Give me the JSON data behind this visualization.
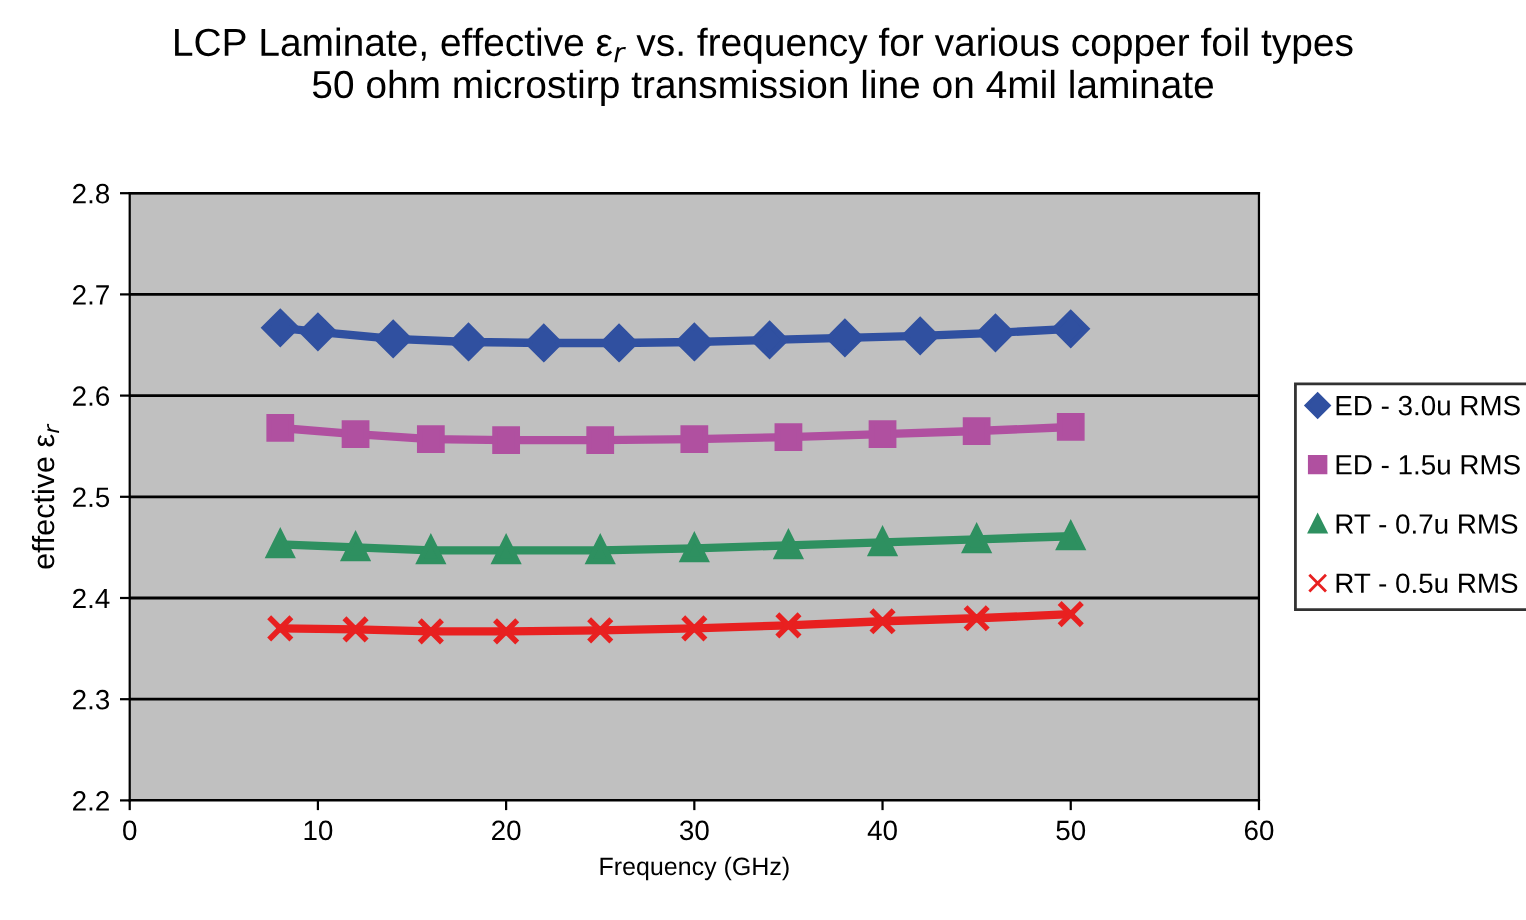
{
  "chart_data": {
    "type": "line",
    "title": "LCP Laminate, effective ε$_{r}$ vs. frequency for various copper foil types\n50 ohm microstirp transmission line on 4mil laminate",
    "xlabel": "Frequency (GHz)",
    "ylabel": "effective ε$_{r}$",
    "xlim": [
      0,
      60
    ],
    "xticks": [
      0,
      10,
      20,
      30,
      40,
      50,
      60
    ],
    "ylim": [
      2.2,
      2.8
    ],
    "yticks": [
      2.2,
      2.3,
      2.4,
      2.5,
      2.6,
      2.7,
      2.8
    ],
    "grid": "y",
    "legend": "right",
    "series": [
      {
        "name": "ED - 3.0u RMS",
        "color": "#3050a0",
        "marker": "diamond",
        "x": [
          8,
          10,
          14,
          18,
          22,
          26,
          30,
          34,
          38,
          42,
          46,
          50
        ],
        "values": [
          2.667,
          2.663,
          2.656,
          2.653,
          2.652,
          2.652,
          2.653,
          2.655,
          2.657,
          2.659,
          2.662,
          2.666
        ]
      },
      {
        "name": "ED - 1.5u RMS",
        "color": "#b050a0",
        "marker": "square",
        "x": [
          8,
          12,
          16,
          20,
          25,
          30,
          35,
          40,
          45,
          50
        ],
        "values": [
          2.568,
          2.562,
          2.557,
          2.556,
          2.556,
          2.557,
          2.559,
          2.562,
          2.565,
          2.569
        ]
      },
      {
        "name": "RT - 0.7u RMS",
        "color": "#2e9060",
        "marker": "triangle",
        "x": [
          8,
          12,
          16,
          20,
          25,
          30,
          35,
          40,
          45,
          50
        ],
        "values": [
          2.453,
          2.45,
          2.447,
          2.447,
          2.447,
          2.449,
          2.452,
          2.455,
          2.458,
          2.461
        ]
      },
      {
        "name": "RT - 0.5u RMS",
        "color": "#e82020",
        "marker": "cross",
        "x": [
          8,
          12,
          16,
          20,
          25,
          30,
          35,
          40,
          45,
          50
        ],
        "values": [
          2.37,
          2.369,
          2.367,
          2.367,
          2.368,
          2.37,
          2.373,
          2.377,
          2.38,
          2.384
        ]
      }
    ]
  }
}
